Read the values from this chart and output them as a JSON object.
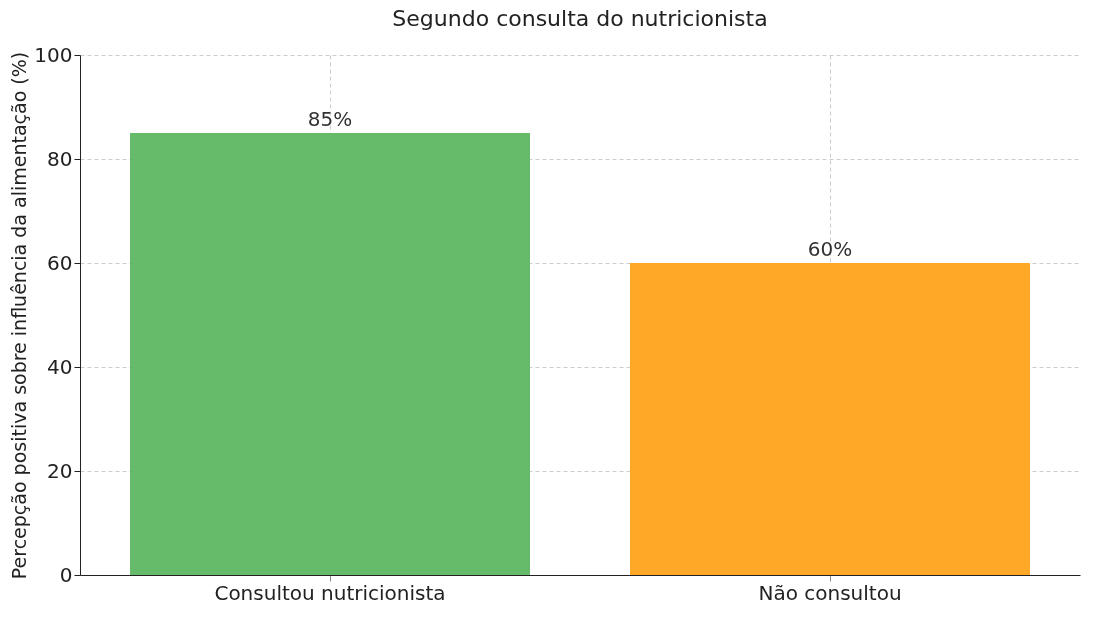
{
  "chart_data": {
    "type": "bar",
    "title": "Segundo consulta do nutricionista",
    "ylabel": "Percepção positiva sobre influência da alimentação (%)",
    "categories": [
      "Consultou nutricionista",
      "Não consultou"
    ],
    "values": [
      85,
      60
    ],
    "colors": [
      "#66bb6a",
      "#ffa726"
    ],
    "value_labels": [
      "85%",
      "60%"
    ],
    "ylim": [
      0,
      100
    ],
    "yticks": [
      0,
      20,
      40,
      60,
      80,
      100
    ],
    "grid": true
  }
}
